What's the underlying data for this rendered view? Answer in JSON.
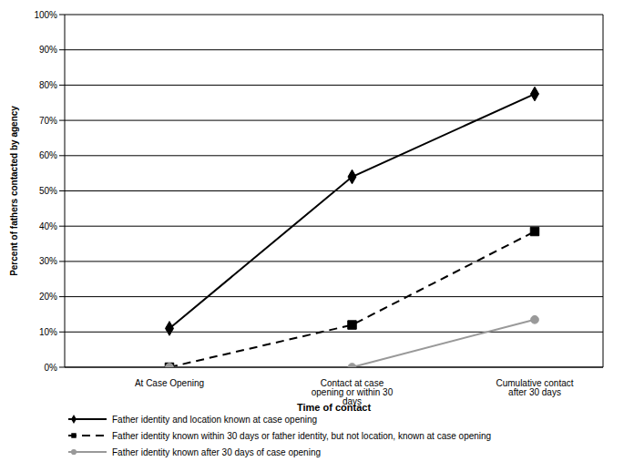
{
  "chart_data": {
    "type": "line",
    "x_label": "Time of contact",
    "y_label": "Percent of fathers contacted by agency",
    "categories": [
      "At Case Opening",
      "Contact at case opening or within 30 days",
      "Cumulative contact after 30 days"
    ],
    "series": [
      {
        "name": "Father identity and location known at case opening",
        "color": "#000000",
        "marker": "diamond",
        "line_style": "solid",
        "values": [
          11,
          54,
          77.5
        ]
      },
      {
        "name": "Father identity known within 30 days or father identity, but not location, known at case opening",
        "color": "#000000",
        "marker": "square",
        "line_style": "dashed",
        "values": [
          0,
          12,
          38.5
        ]
      },
      {
        "name": "Father identity known after 30 days of case opening",
        "color": "#999999",
        "marker": "circle",
        "line_style": "solid",
        "values": [
          0,
          0,
          13.5
        ]
      }
    ],
    "ylim": [
      0,
      100
    ],
    "yticks": [
      {
        "value": 0,
        "label": "0%"
      },
      {
        "value": 10,
        "label": "10%"
      },
      {
        "value": 20,
        "label": "20%"
      },
      {
        "value": 30,
        "label": "30%"
      },
      {
        "value": 40,
        "label": "40%"
      },
      {
        "value": 50,
        "label": "50%"
      },
      {
        "value": 60,
        "label": "60%"
      },
      {
        "value": 70,
        "label": "70%"
      },
      {
        "value": 80,
        "label": "80%"
      },
      {
        "value": 90,
        "label": "90%"
      },
      {
        "value": 100,
        "label": "100%"
      }
    ],
    "grid": true
  }
}
